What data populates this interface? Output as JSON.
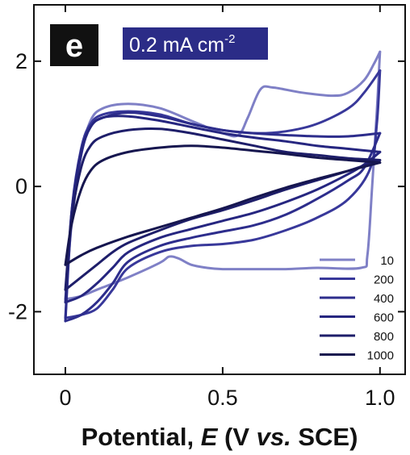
{
  "chart_data": {
    "type": "line",
    "panel_label": "e",
    "annotation": {
      "text": "0.2 mA cm",
      "superscript": "-2"
    },
    "xlabel": {
      "prefix": "Potential, ",
      "symbol": "E",
      "mid": " (V ",
      "vs": "vs.",
      "suffix": " SCE)"
    },
    "ylabel": "",
    "xlim": [
      -0.1,
      1.08
    ],
    "ylim": [
      -3.0,
      2.9
    ],
    "x_ticks": [
      {
        "value": 0,
        "label": "0"
      },
      {
        "value": 0.5,
        "label": "0.5"
      },
      {
        "value": 1.0,
        "label": "1.0"
      }
    ],
    "y_ticks": [
      {
        "value": 2,
        "label": "2"
      },
      {
        "value": 0,
        "label": "0"
      },
      {
        "value": -2,
        "label": "-2"
      }
    ],
    "legend_position": "bottom-right",
    "series": [
      {
        "name": "10",
        "color": "#7f80c6",
        "anodic": [
          [
            0,
            -1.8
          ],
          [
            0.02,
            -0.6
          ],
          [
            0.05,
            0.5
          ],
          [
            0.08,
            1.05
          ],
          [
            0.12,
            1.25
          ],
          [
            0.2,
            1.32
          ],
          [
            0.3,
            1.25
          ],
          [
            0.4,
            1.05
          ],
          [
            0.5,
            0.85
          ],
          [
            0.55,
            0.82
          ],
          [
            0.58,
            1.1
          ],
          [
            0.62,
            1.55
          ],
          [
            0.66,
            1.58
          ],
          [
            0.75,
            1.5
          ],
          [
            0.85,
            1.45
          ],
          [
            0.9,
            1.5
          ],
          [
            0.95,
            1.7
          ],
          [
            0.98,
            1.95
          ],
          [
            1.0,
            2.15
          ]
        ],
        "cathodic": [
          [
            1.0,
            2.15
          ],
          [
            0.99,
            1.2
          ],
          [
            0.975,
            0.0
          ],
          [
            0.96,
            -1.1
          ],
          [
            0.94,
            -1.3
          ],
          [
            0.8,
            -1.3
          ],
          [
            0.7,
            -1.32
          ],
          [
            0.6,
            -1.32
          ],
          [
            0.5,
            -1.32
          ],
          [
            0.45,
            -1.3
          ],
          [
            0.4,
            -1.25
          ],
          [
            0.36,
            -1.15
          ],
          [
            0.33,
            -1.12
          ],
          [
            0.3,
            -1.22
          ],
          [
            0.2,
            -1.45
          ],
          [
            0.1,
            -1.65
          ],
          [
            0.05,
            -1.75
          ],
          [
            0,
            -1.8
          ]
        ]
      },
      {
        "name": "200",
        "color": "#38389a",
        "anodic": [
          [
            0,
            -2.1
          ],
          [
            0.02,
            -0.4
          ],
          [
            0.05,
            0.6
          ],
          [
            0.08,
            1.0
          ],
          [
            0.12,
            1.15
          ],
          [
            0.2,
            1.2
          ],
          [
            0.3,
            1.15
          ],
          [
            0.4,
            1.0
          ],
          [
            0.5,
            0.9
          ],
          [
            0.6,
            0.85
          ],
          [
            0.7,
            0.88
          ],
          [
            0.8,
            1.0
          ],
          [
            0.9,
            1.25
          ],
          [
            0.95,
            1.5
          ],
          [
            1.0,
            1.85
          ]
        ],
        "cathodic": [
          [
            1.0,
            1.85
          ],
          [
            0.99,
            1.0
          ],
          [
            0.97,
            0.3
          ],
          [
            0.9,
            -0.2
          ],
          [
            0.8,
            -0.5
          ],
          [
            0.7,
            -0.7
          ],
          [
            0.6,
            -0.85
          ],
          [
            0.5,
            -0.92
          ],
          [
            0.4,
            -0.95
          ],
          [
            0.3,
            -1.05
          ],
          [
            0.2,
            -1.3
          ],
          [
            0.15,
            -1.65
          ],
          [
            0.1,
            -1.95
          ],
          [
            0.05,
            -2.05
          ],
          [
            0,
            -2.1
          ]
        ]
      },
      {
        "name": "400",
        "color": "#2d2d8c",
        "anodic": [
          [
            0,
            -2.15
          ],
          [
            0.02,
            -0.5
          ],
          [
            0.05,
            0.5
          ],
          [
            0.08,
            0.95
          ],
          [
            0.12,
            1.1
          ],
          [
            0.2,
            1.18
          ],
          [
            0.3,
            1.12
          ],
          [
            0.4,
            1.0
          ],
          [
            0.5,
            0.9
          ],
          [
            0.6,
            0.85
          ],
          [
            0.7,
            0.82
          ],
          [
            0.8,
            0.8
          ],
          [
            0.9,
            0.8
          ],
          [
            1.0,
            0.85
          ]
        ],
        "cathodic": [
          [
            1.0,
            0.85
          ],
          [
            0.95,
            0.3
          ],
          [
            0.9,
            0.1
          ],
          [
            0.8,
            -0.2
          ],
          [
            0.7,
            -0.45
          ],
          [
            0.6,
            -0.62
          ],
          [
            0.5,
            -0.72
          ],
          [
            0.4,
            -0.82
          ],
          [
            0.3,
            -0.95
          ],
          [
            0.2,
            -1.2
          ],
          [
            0.15,
            -1.55
          ],
          [
            0.1,
            -1.85
          ],
          [
            0.05,
            -2.05
          ],
          [
            0,
            -2.15
          ]
        ]
      },
      {
        "name": "600",
        "color": "#262680",
        "anodic": [
          [
            0,
            -1.85
          ],
          [
            0.02,
            -0.4
          ],
          [
            0.05,
            0.55
          ],
          [
            0.08,
            0.95
          ],
          [
            0.12,
            1.1
          ],
          [
            0.2,
            1.12
          ],
          [
            0.3,
            1.05
          ],
          [
            0.4,
            0.95
          ],
          [
            0.5,
            0.85
          ],
          [
            0.6,
            0.78
          ],
          [
            0.7,
            0.72
          ],
          [
            0.8,
            0.65
          ],
          [
            0.9,
            0.6
          ],
          [
            1.0,
            0.55
          ]
        ],
        "cathodic": [
          [
            1.0,
            0.55
          ],
          [
            0.95,
            0.35
          ],
          [
            0.9,
            0.2
          ],
          [
            0.8,
            -0.05
          ],
          [
            0.7,
            -0.25
          ],
          [
            0.6,
            -0.42
          ],
          [
            0.5,
            -0.55
          ],
          [
            0.4,
            -0.68
          ],
          [
            0.3,
            -0.82
          ],
          [
            0.2,
            -1.05
          ],
          [
            0.15,
            -1.3
          ],
          [
            0.1,
            -1.55
          ],
          [
            0.05,
            -1.75
          ],
          [
            0,
            -1.85
          ]
        ]
      },
      {
        "name": "800",
        "color": "#1e1e6a",
        "anodic": [
          [
            0,
            -1.65
          ],
          [
            0.02,
            -0.5
          ],
          [
            0.05,
            0.3
          ],
          [
            0.08,
            0.65
          ],
          [
            0.12,
            0.8
          ],
          [
            0.2,
            0.9
          ],
          [
            0.3,
            0.92
          ],
          [
            0.4,
            0.85
          ],
          [
            0.5,
            0.75
          ],
          [
            0.6,
            0.65
          ],
          [
            0.7,
            0.55
          ],
          [
            0.8,
            0.5
          ],
          [
            0.9,
            0.45
          ],
          [
            1.0,
            0.42
          ]
        ],
        "cathodic": [
          [
            1.0,
            0.42
          ],
          [
            0.9,
            0.25
          ],
          [
            0.8,
            0.1
          ],
          [
            0.7,
            -0.05
          ],
          [
            0.6,
            -0.22
          ],
          [
            0.5,
            -0.38
          ],
          [
            0.4,
            -0.52
          ],
          [
            0.3,
            -0.7
          ],
          [
            0.2,
            -0.9
          ],
          [
            0.15,
            -1.05
          ],
          [
            0.1,
            -1.25
          ],
          [
            0.05,
            -1.45
          ],
          [
            0,
            -1.65
          ]
        ]
      },
      {
        "name": "1000",
        "color": "#16164f",
        "anodic": [
          [
            0,
            -1.25
          ],
          [
            0.02,
            -0.6
          ],
          [
            0.05,
            -0.05
          ],
          [
            0.08,
            0.25
          ],
          [
            0.12,
            0.42
          ],
          [
            0.2,
            0.55
          ],
          [
            0.3,
            0.62
          ],
          [
            0.4,
            0.65
          ],
          [
            0.5,
            0.62
          ],
          [
            0.6,
            0.57
          ],
          [
            0.7,
            0.52
          ],
          [
            0.8,
            0.46
          ],
          [
            0.9,
            0.42
          ],
          [
            1.0,
            0.38
          ]
        ],
        "cathodic": [
          [
            1.0,
            0.38
          ],
          [
            0.9,
            0.25
          ],
          [
            0.8,
            0.12
          ],
          [
            0.7,
            -0.02
          ],
          [
            0.6,
            -0.18
          ],
          [
            0.5,
            -0.35
          ],
          [
            0.4,
            -0.5
          ],
          [
            0.3,
            -0.65
          ],
          [
            0.2,
            -0.8
          ],
          [
            0.1,
            -0.98
          ],
          [
            0.05,
            -1.1
          ],
          [
            0,
            -1.25
          ]
        ]
      }
    ]
  }
}
